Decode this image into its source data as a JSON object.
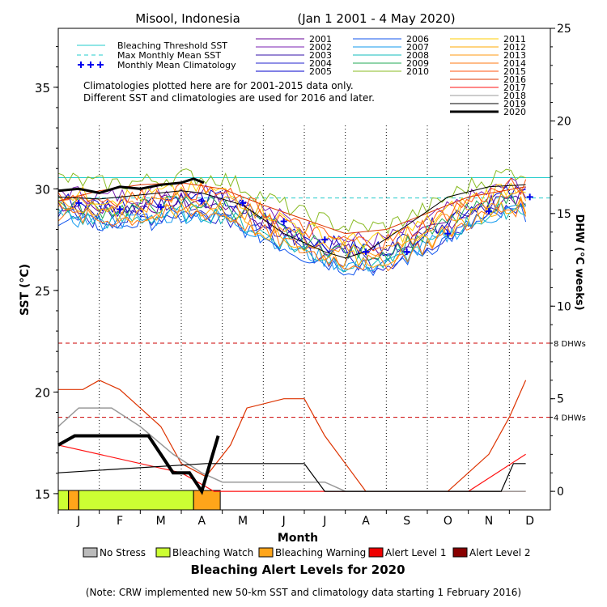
{
  "chart_data": {
    "type": "line",
    "title": "Misool, Indonesia",
    "date_range": "(Jan 1 2001 - 4 May 2020)",
    "xlabel": "Month",
    "ylabel": "SST (°C)",
    "ylabel_right": "DHW (°C weeks)",
    "months": [
      "J",
      "F",
      "M",
      "A",
      "M",
      "J",
      "J",
      "A",
      "S",
      "O",
      "N",
      "D"
    ],
    "sst_range": [
      14.2,
      37.9
    ],
    "sst_ticks": [
      15,
      20,
      25,
      30,
      35
    ],
    "dhw_range": [
      -1,
      25
    ],
    "dhw_ticks": [
      0,
      5,
      10,
      15,
      20,
      25
    ],
    "bleaching_threshold_sst": 30.55,
    "max_monthly_mean_sst": 29.55,
    "dhw_reference_lines": [
      {
        "value": 8,
        "label": "8 DHWs",
        "color": "#cc0000"
      },
      {
        "value": 4,
        "label": "4 DHWs",
        "color": "#cc0000"
      }
    ],
    "monthly_mean_climatology": [
      29.3,
      29.0,
      29.1,
      29.4,
      29.3,
      28.4,
      27.5,
      26.9,
      26.9,
      27.8,
      28.9,
      29.6
    ],
    "legend_left": [
      {
        "label": "Bleaching Threshold SST",
        "color": "#22cccc",
        "style": "solid"
      },
      {
        "label": "Max Monthly Mean SST",
        "color": "#22cccc",
        "style": "dashed"
      },
      {
        "label": "Monthly Mean Climatology",
        "color": "#0000ee",
        "style": "plus"
      }
    ],
    "notes": [
      "Climatologies plotted here are for 2001-2015 data only.",
      "Different SST and climatologies are used for 2016 and later."
    ],
    "series": [
      {
        "name": "2001",
        "color": "#660099",
        "width": 1
      },
      {
        "name": "2002",
        "color": "#7a1fb3",
        "width": 1
      },
      {
        "name": "2003",
        "color": "#3311aa",
        "width": 1
      },
      {
        "name": "2004",
        "color": "#2222cc",
        "width": 1
      },
      {
        "name": "2005",
        "color": "#0000cc",
        "width": 1
      },
      {
        "name": "2006",
        "color": "#1155ee",
        "width": 1
      },
      {
        "name": "2007",
        "color": "#1199ee",
        "width": 1
      },
      {
        "name": "2008",
        "color": "#11bbbb",
        "width": 1
      },
      {
        "name": "2009",
        "color": "#22aa55",
        "width": 1
      },
      {
        "name": "2010",
        "color": "#88bb22",
        "width": 1
      },
      {
        "name": "2011",
        "color": "#ffcc00",
        "width": 1
      },
      {
        "name": "2012",
        "color": "#ffaa00",
        "width": 1
      },
      {
        "name": "2013",
        "color": "#ff9911",
        "width": 1
      },
      {
        "name": "2014",
        "color": "#ff7711",
        "width": 1
      },
      {
        "name": "2015",
        "color": "#ff5511",
        "width": 1
      },
      {
        "name": "2016",
        "color": "#dd3300",
        "width": 1
      },
      {
        "name": "2017",
        "color": "#ff1111",
        "width": 1
      },
      {
        "name": "2018",
        "color": "#999999",
        "width": 1
      },
      {
        "name": "2019",
        "color": "#000000",
        "width": 1
      },
      {
        "name": "2020",
        "color": "#000000",
        "width": 3
      }
    ],
    "sst_2020": [
      [
        0,
        29.9
      ],
      [
        0.5,
        30.0
      ],
      [
        1.0,
        29.8
      ],
      [
        1.5,
        30.1
      ],
      [
        2.0,
        30.0
      ],
      [
        2.5,
        30.2
      ],
      [
        3.0,
        30.3
      ],
      [
        3.3,
        30.5
      ],
      [
        3.55,
        30.3
      ]
    ],
    "sst_2019": [
      [
        0,
        29.6
      ],
      [
        1,
        29.5
      ],
      [
        2,
        29.7
      ],
      [
        3,
        29.9
      ],
      [
        3.5,
        29.8
      ],
      [
        4.5,
        29.2
      ],
      [
        5.5,
        27.8
      ],
      [
        6.5,
        26.9
      ],
      [
        7.0,
        26.6
      ],
      [
        7.5,
        26.9
      ],
      [
        8.5,
        28.2
      ],
      [
        9.5,
        29.6
      ],
      [
        10.5,
        30.1
      ],
      [
        11.4,
        30.2
      ]
    ],
    "sst_2016": [
      [
        0,
        29.4
      ],
      [
        1,
        29.9
      ],
      [
        2,
        30.2
      ],
      [
        3,
        30.3
      ],
      [
        4,
        30.0
      ],
      [
        5,
        29.2
      ],
      [
        6,
        28.5
      ],
      [
        7,
        27.8
      ],
      [
        8,
        28.0
      ],
      [
        9,
        28.8
      ],
      [
        10,
        29.6
      ],
      [
        11.4,
        30.1
      ]
    ],
    "dhw_2020": [
      [
        0,
        2.5
      ],
      [
        0.4,
        3.0
      ],
      [
        1.2,
        3.0
      ],
      [
        2.2,
        3.0
      ],
      [
        2.8,
        1.0
      ],
      [
        3.2,
        1.0
      ],
      [
        3.5,
        0
      ],
      [
        3.9,
        3.0
      ]
    ],
    "dhw_2016": [
      [
        0,
        5.5
      ],
      [
        0.6,
        5.5
      ],
      [
        1.0,
        6.0
      ],
      [
        1.5,
        5.5
      ],
      [
        2.0,
        4.5
      ],
      [
        2.5,
        3.5
      ],
      [
        3.0,
        1.5
      ],
      [
        3.6,
        0.8
      ],
      [
        4.2,
        2.5
      ],
      [
        4.6,
        4.5
      ],
      [
        5.5,
        5.0
      ],
      [
        6.0,
        5.0
      ],
      [
        6.5,
        3.0
      ],
      [
        7.0,
        1.5
      ],
      [
        7.5,
        0
      ],
      [
        11.4,
        0
      ]
    ],
    "dhw_2017": [
      [
        0,
        2.5
      ],
      [
        3.0,
        1.0
      ],
      [
        3.8,
        0
      ],
      [
        10.0,
        0
      ],
      [
        10.7,
        1.0
      ],
      [
        11.4,
        2.0
      ]
    ],
    "dhw_2018": [
      [
        0,
        3.5
      ],
      [
        0.5,
        4.5
      ],
      [
        1.3,
        4.5
      ],
      [
        2.0,
        3.5
      ],
      [
        2.8,
        2.0
      ],
      [
        3.5,
        1.0
      ],
      [
        4.0,
        0.5
      ],
      [
        6.5,
        0.5
      ],
      [
        7.0,
        0
      ],
      [
        11.4,
        0
      ]
    ],
    "dhw_2019": [
      [
        0,
        1.0
      ],
      [
        3.6,
        1.5
      ],
      [
        6.0,
        1.5
      ],
      [
        6.5,
        0
      ],
      [
        10.8,
        0
      ],
      [
        11.1,
        1.5
      ],
      [
        11.4,
        1.5
      ]
    ],
    "dhw_right_edge_2016": [
      [
        9.5,
        0
      ],
      [
        10.5,
        2.0
      ],
      [
        11.0,
        4.0
      ],
      [
        11.4,
        6.0
      ]
    ],
    "alert_bar": [
      {
        "from": 0,
        "to": 0.25,
        "color": "#ccff33"
      },
      {
        "from": 0.25,
        "to": 0.5,
        "color": "#ffa51a"
      },
      {
        "from": 0.5,
        "to": 3.3,
        "color": "#ccff33"
      },
      {
        "from": 3.3,
        "to": 3.95,
        "color": "#ffa51a"
      }
    ],
    "alert_legend": [
      {
        "label": "No Stress",
        "color": "#bbbbbb"
      },
      {
        "label": "Bleaching Watch",
        "color": "#ccff33"
      },
      {
        "label": "Bleaching Warning",
        "color": "#ffa51a"
      },
      {
        "label": "Alert Level 1",
        "color": "#ee0000"
      },
      {
        "label": "Alert Level 2",
        "color": "#880000"
      }
    ],
    "alert_title": "Bleaching Alert Levels for 2020",
    "footnote": "(Note: CRW implemented new 50-km SST and climatology data starting 1 February 2016)"
  }
}
